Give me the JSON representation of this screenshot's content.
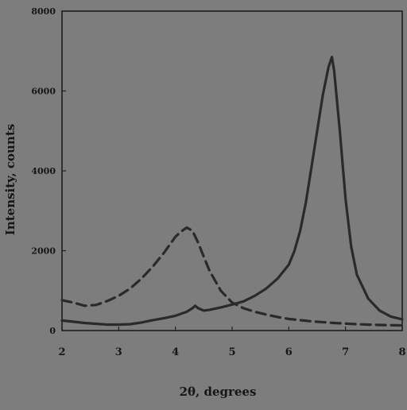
{
  "chart_data": {
    "type": "line",
    "xlabel": "2θ, degrees",
    "ylabel": "Intensity, counts",
    "xlim": [
      2,
      8
    ],
    "ylim": [
      0,
      8000
    ],
    "x_ticks": [
      2,
      3,
      4,
      5,
      6,
      7,
      8
    ],
    "y_ticks": [
      0,
      2000,
      4000,
      6000,
      8000
    ],
    "grid": false,
    "legend": "none",
    "series": [
      {
        "style": "solid",
        "color": "#2a2a2a",
        "x": [
          2.0,
          2.2,
          2.4,
          2.6,
          2.8,
          3.0,
          3.2,
          3.4,
          3.6,
          3.8,
          4.0,
          4.2,
          4.3,
          4.35,
          4.4,
          4.5,
          4.6,
          4.8,
          5.0,
          5.2,
          5.4,
          5.6,
          5.8,
          6.0,
          6.1,
          6.2,
          6.3,
          6.4,
          6.5,
          6.6,
          6.7,
          6.76,
          6.8,
          6.9,
          7.0,
          7.1,
          7.2,
          7.4,
          7.6,
          7.8,
          8.0
        ],
        "y": [
          250,
          220,
          190,
          170,
          150,
          150,
          160,
          200,
          260,
          310,
          370,
          470,
          560,
          620,
          560,
          500,
          520,
          580,
          650,
          730,
          870,
          1050,
          1300,
          1650,
          2000,
          2500,
          3200,
          4100,
          5000,
          5900,
          6600,
          6850,
          6500,
          5000,
          3300,
          2100,
          1400,
          800,
          500,
          350,
          280
        ]
      },
      {
        "style": "dashed",
        "color": "#2a2a2a",
        "x": [
          2.0,
          2.2,
          2.4,
          2.6,
          2.8,
          3.0,
          3.2,
          3.4,
          3.6,
          3.8,
          3.9,
          4.0,
          4.1,
          4.2,
          4.3,
          4.4,
          4.5,
          4.6,
          4.8,
          5.0,
          5.2,
          5.4,
          5.6,
          5.8,
          6.0,
          6.4,
          6.8,
          7.2,
          7.6,
          8.0
        ],
        "y": [
          760,
          700,
          620,
          640,
          740,
          870,
          1050,
          1300,
          1600,
          1950,
          2150,
          2350,
          2480,
          2580,
          2500,
          2200,
          1850,
          1500,
          1000,
          700,
          560,
          470,
          400,
          340,
          290,
          230,
          190,
          160,
          140,
          130
        ]
      }
    ]
  }
}
